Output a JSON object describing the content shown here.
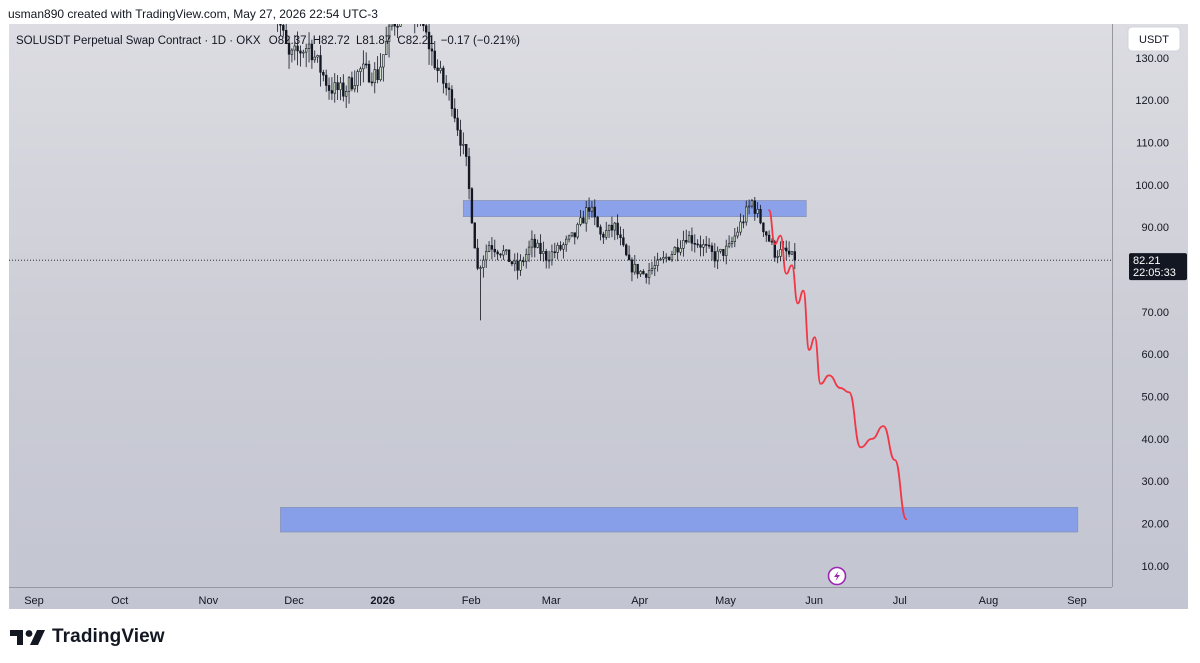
{
  "caption": "usman890 created with TradingView.com, May 27, 2026 22:54 UTC-3",
  "logo_text": "TradingView",
  "legend": {
    "symbol": "SOLUSDT Perpetual Swap Contract · 1D · OKX",
    "open": "O82.37",
    "high": "H82.72",
    "low": "L81.87",
    "close": "C82.21",
    "change": "−0.17 (−0.21%)"
  },
  "currency_button": "USDT",
  "colors": {
    "up_candle": "#2e3a2a",
    "up_candle_fill": "#cfe3c8",
    "down_candle": "#131722",
    "zone": "#6f8ff0",
    "forecast": "#f23645",
    "last_price_bg": "#131722"
  },
  "chart_data": {
    "type": "candlestick",
    "title": "SOLUSDT Perpetual Swap Contract · 1D · OKX",
    "y_axis": {
      "ticks": [
        "10.00",
        "20.00",
        "30.00",
        "40.00",
        "50.00",
        "60.00",
        "70.00",
        "80.00",
        "90.00",
        "100.00",
        "110.00",
        "120.00",
        "130.00"
      ],
      "range": [
        5,
        138
      ]
    },
    "x_axis": {
      "ticks": [
        "Sep",
        "Oct",
        "Nov",
        "Dec",
        "2026",
        "Feb",
        "Mar",
        "Apr",
        "May",
        "Jun",
        "Jul",
        "Aug",
        "Sep"
      ],
      "bold_ticks": [
        "2026"
      ],
      "range": [
        "2025-08-25",
        "2026-09-15"
      ]
    },
    "last_price": {
      "value": "82.21",
      "countdown": "22:05:33",
      "numeric": 82.21
    },
    "price_path": [
      [
        "2025-11-25",
        145
      ],
      [
        "2025-12-01",
        130
      ],
      [
        "2025-12-08",
        133
      ],
      [
        "2025-12-15",
        123
      ],
      [
        "2025-12-20",
        122
      ],
      [
        "2025-12-26",
        127
      ],
      [
        "2026-01-01",
        126
      ],
      [
        "2026-01-06",
        138
      ],
      [
        "2026-01-12",
        143
      ],
      [
        "2026-01-17",
        137
      ],
      [
        "2026-01-22",
        127
      ],
      [
        "2026-01-27",
        120
      ],
      [
        "2026-02-01",
        105
      ],
      [
        "2026-02-05",
        80
      ],
      [
        "2026-02-09",
        86
      ],
      [
        "2026-02-14",
        84
      ],
      [
        "2026-02-19",
        80
      ],
      [
        "2026-02-24",
        86
      ],
      [
        "2026-03-01",
        83
      ],
      [
        "2026-03-06",
        85
      ],
      [
        "2026-03-11",
        88
      ],
      [
        "2026-03-16",
        95
      ],
      [
        "2026-03-20",
        88
      ],
      [
        "2026-03-25",
        90
      ],
      [
        "2026-03-30",
        81
      ],
      [
        "2026-04-04",
        79
      ],
      [
        "2026-04-09",
        81
      ],
      [
        "2026-04-14",
        84
      ],
      [
        "2026-04-19",
        88
      ],
      [
        "2026-04-24",
        86
      ],
      [
        "2026-04-29",
        83
      ],
      [
        "2026-05-04",
        85
      ],
      [
        "2026-05-09",
        92
      ],
      [
        "2026-05-12",
        96
      ],
      [
        "2026-05-16",
        90
      ],
      [
        "2026-05-20",
        84
      ],
      [
        "2026-05-24",
        84
      ],
      [
        "2026-05-27",
        82.2
      ]
    ],
    "zones": [
      {
        "start": "2026-01-31",
        "end": "2026-05-31",
        "low": 92.5,
        "high": 96.3
      },
      {
        "start": "2025-11-28",
        "end": "2026-09-03",
        "low": 18.0,
        "high": 23.8
      }
    ],
    "forecast_path": [
      [
        "2026-05-18",
        94
      ],
      [
        "2026-05-20",
        86
      ],
      [
        "2026-05-22",
        88
      ],
      [
        "2026-05-24",
        79
      ],
      [
        "2026-05-26",
        81
      ],
      [
        "2026-05-28",
        72
      ],
      [
        "2026-05-30",
        75
      ],
      [
        "2026-06-01",
        61
      ],
      [
        "2026-06-03",
        64
      ],
      [
        "2026-06-05",
        53
      ],
      [
        "2026-06-08",
        55
      ],
      [
        "2026-06-12",
        52
      ],
      [
        "2026-06-15",
        51
      ],
      [
        "2026-06-19",
        38
      ],
      [
        "2026-06-23",
        40
      ],
      [
        "2026-06-27",
        43
      ],
      [
        "2026-07-01",
        35
      ],
      [
        "2026-07-05",
        21
      ]
    ]
  }
}
